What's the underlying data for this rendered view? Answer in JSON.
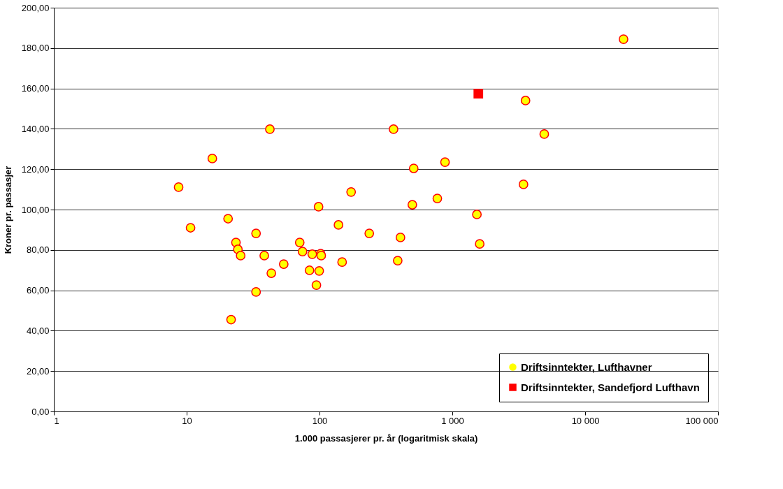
{
  "chart_data": {
    "type": "scatter",
    "xlabel": "1.000 passasjerer pr. år (logaritmisk skala)",
    "ylabel": "Kroner pr. passasjer",
    "log": "x",
    "grid": "y",
    "legend": "bottom right",
    "xlim": [
      1,
      100000
    ],
    "xticks": [
      1,
      10,
      100,
      {
        "value": 1000,
        "label": "1 000"
      },
      {
        "value": 10000,
        "label": "10 000"
      },
      {
        "value": 100000,
        "label": "100 000"
      }
    ],
    "ylim": [
      0,
      200
    ],
    "yticks": [
      {
        "value": 0,
        "label": "0,00"
      },
      {
        "value": 20,
        "label": "20,00"
      },
      {
        "value": 40,
        "label": "40,00"
      },
      {
        "value": 60,
        "label": "60,00"
      },
      {
        "value": 80,
        "label": "80,00"
      },
      {
        "value": 100,
        "label": "100,00"
      },
      {
        "value": 120,
        "label": "120,00"
      },
      {
        "value": 140,
        "label": "140,00"
      },
      {
        "value": 160,
        "label": "160,00"
      },
      {
        "value": 180,
        "label": "180,00"
      },
      {
        "value": 200,
        "label": "200,00"
      }
    ],
    "series": [
      {
        "name": "Driftsinntekter, Lufthavner",
        "color": "#ffff00",
        "marker": "circle",
        "x": [
          8.7,
          10.7,
          15.6,
          20.5,
          21.6,
          23.5,
          24.3,
          25.5,
          33.3,
          33.3,
          38.4,
          42.3,
          43.4,
          53.8,
          71,
          74.5,
          84.1,
          88.2,
          94.8,
          98.4,
          99.5,
          102,
          103,
          139,
          148,
          173,
          237,
          361,
          388,
          407,
          500,
          512,
          771,
          881,
          1531,
          1607,
          3434,
          3557,
          4921,
          19450
        ],
        "values": [
          111.1,
          91.0,
          125.3,
          95.5,
          45.5,
          83.7,
          80.3,
          77.2,
          88.2,
          59.2,
          77.2,
          139.8,
          68.5,
          73.0,
          83.7,
          79.2,
          69.9,
          77.9,
          62.6,
          101.4,
          69.6,
          78.2,
          77.2,
          92.4,
          74.0,
          108.7,
          88.2,
          139.8,
          74.7,
          86.2,
          102.4,
          120.4,
          105.5,
          123.5,
          97.6,
          83.0,
          112.5,
          154.0,
          137.4,
          184.4
        ]
      },
      {
        "name": "Driftsinntekter, Sandefjord Lufthavn",
        "color": "#ff0000",
        "marker": "square",
        "x": [
          1570
        ],
        "values": [
          157.4
        ]
      }
    ]
  }
}
